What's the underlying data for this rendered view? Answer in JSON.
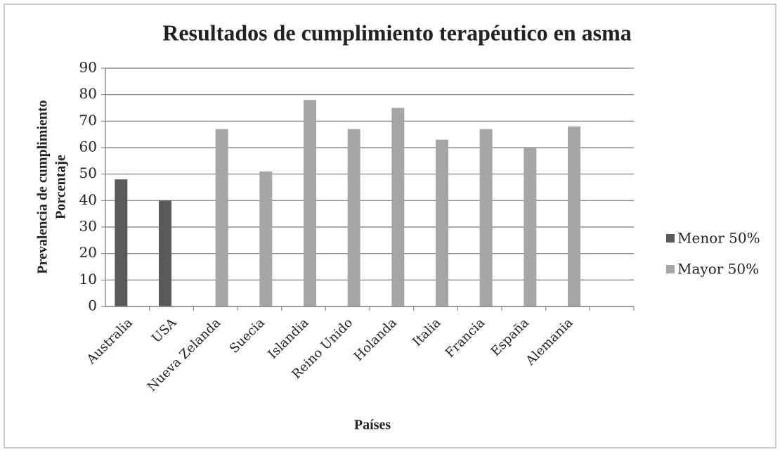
{
  "chart_data": {
    "type": "bar",
    "title": "Resultados de cumplimiento terapéutico en asma",
    "xlabel": "Países",
    "ylabel": [
      "Prevalencia de cumplimiento",
      "Porcentaje"
    ],
    "categories": [
      "Australia",
      "USA",
      "Nueva Zelanda",
      "Suecia",
      "Islandia",
      "Reino Unido",
      "Holanda",
      "Italia",
      "Francia",
      "España",
      "Alemania",
      null
    ],
    "series": [
      {
        "name": "Menor 50%",
        "color": "#5a5a5a",
        "values": [
          48,
          40,
          null,
          null,
          null,
          null,
          null,
          null,
          null,
          null,
          null,
          null
        ]
      },
      {
        "name": "Mayor 50%",
        "color": "#a6a6a6",
        "values": [
          null,
          null,
          67,
          51,
          78,
          67,
          75,
          63,
          67,
          60,
          68,
          null
        ]
      }
    ],
    "ylim": [
      0,
      90
    ],
    "yticks": [
      0,
      10,
      20,
      30,
      40,
      50,
      60,
      70,
      80,
      90
    ],
    "grid": true,
    "legend": "right"
  }
}
